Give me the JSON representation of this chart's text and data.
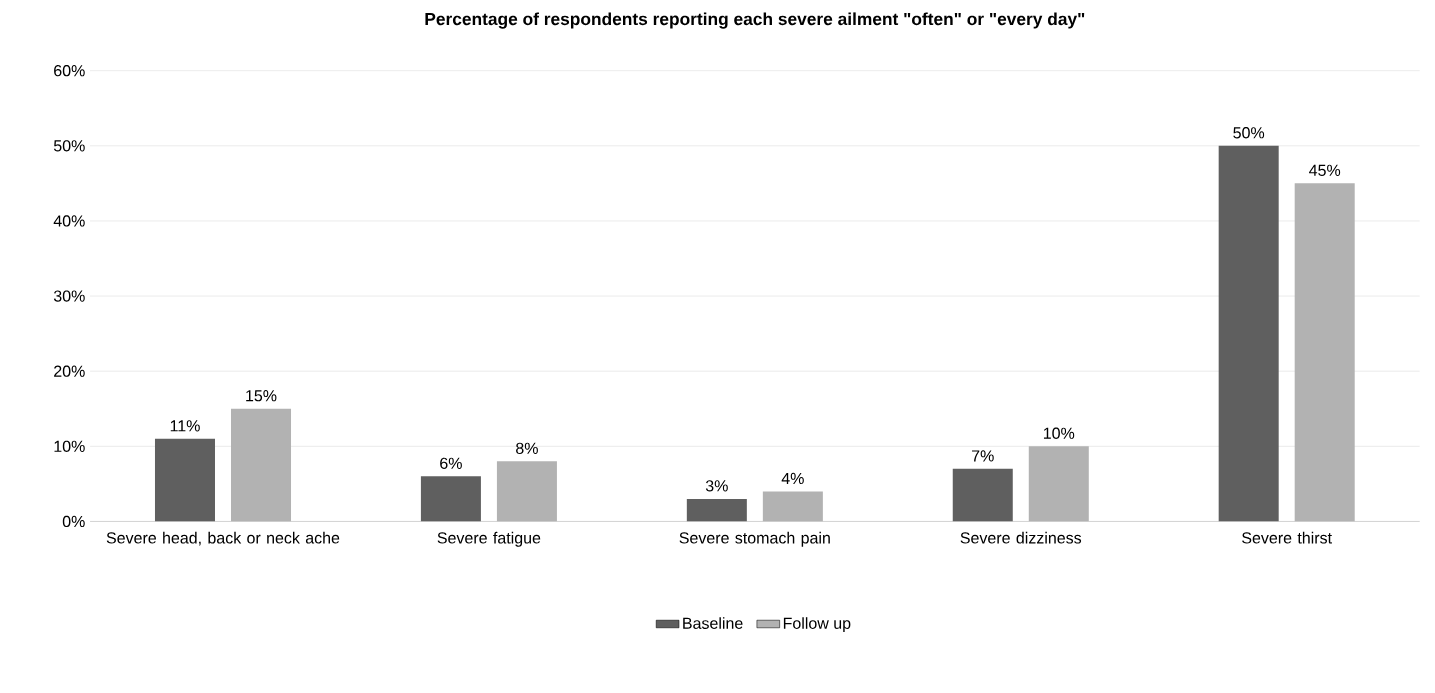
{
  "chart_data": {
    "type": "bar",
    "title": "Percentage of respondents reporting each severe ailment \"often\" or \"every day\"",
    "categories": [
      "Severe head, back or neck ache",
      "Severe fatigue",
      "Severe stomach pain",
      "Severe dizziness",
      "Severe thirst"
    ],
    "series": [
      {
        "name": "Baseline",
        "color": "#5f5f5f",
        "values": [
          11,
          6,
          3,
          7,
          50
        ],
        "value_labels": [
          "11%",
          "6%",
          "3%",
          "7%",
          "50%"
        ]
      },
      {
        "name": "Follow up",
        "color": "#b2b2b2",
        "values": [
          15,
          8,
          4,
          10,
          45
        ],
        "value_labels": [
          "15%",
          "8%",
          "4%",
          "10%",
          "45%"
        ]
      }
    ],
    "ylim": [
      0,
      60
    ],
    "yticks": [
      {
        "value": 0,
        "label": "0%"
      },
      {
        "value": 10,
        "label": "10%"
      },
      {
        "value": 20,
        "label": "20%"
      },
      {
        "value": 30,
        "label": "30%"
      },
      {
        "value": 40,
        "label": "40%"
      },
      {
        "value": 50,
        "label": "50%"
      },
      {
        "value": 60,
        "label": "60%"
      }
    ],
    "grid": "y",
    "legend": "bottom"
  }
}
